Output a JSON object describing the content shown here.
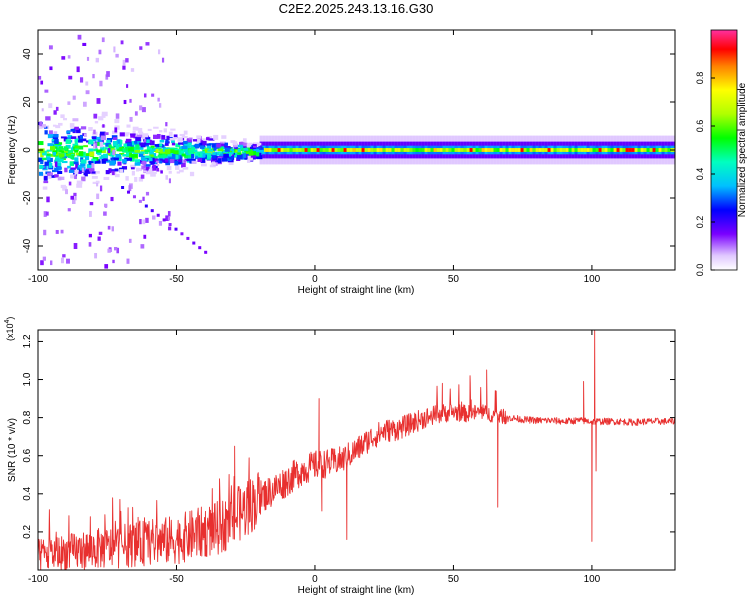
{
  "title": "C2E2.2025.243.13.16.G30",
  "colors": {
    "snr_line": "#e8302f",
    "axis": "#000000"
  },
  "chart_data": [
    {
      "type": "heatmap",
      "xlabel": "Height of straight line (km)",
      "ylabel": "Frequency (Hz)",
      "xlim": [
        -100,
        130
      ],
      "ylim": [
        -50,
        50
      ],
      "xticks": [
        -100,
        -50,
        0,
        50,
        100
      ],
      "yticks": [
        -40,
        -20,
        0,
        20,
        40
      ],
      "colorbar": {
        "label": "Normalized spectral amplitude",
        "range": [
          0,
          1
        ],
        "ticks": [
          0.0,
          0.2,
          0.4,
          0.6,
          0.8
        ],
        "tick_labels": [
          "0.0",
          "0.2",
          "0.4",
          "0.6",
          "0.8"
        ],
        "colormap": "rainbow"
      },
      "features": {
        "dominant_frequency_hz": 0,
        "stable_band_start_km": -20,
        "stable_band_end_km": 130,
        "scattered_region_km": [
          -100,
          -20
        ],
        "diagonal_streak": {
          "x": [
            -70,
            -40
          ],
          "y": [
            -15,
            -42
          ]
        }
      }
    },
    {
      "type": "line",
      "xlabel": "Height of straight line (km)",
      "ylabel": "SNR (10 * v/v)",
      "y_scale_label": "(x10",
      "y_scale_exponent": "4",
      "y_scale_close": ")",
      "xlim": [
        -100,
        130
      ],
      "ylim": [
        0,
        12600
      ],
      "xticks": [
        -100,
        -50,
        0,
        50,
        100
      ],
      "yticks": [
        2000,
        4000,
        6000,
        8000,
        10000,
        12000
      ],
      "ytick_labels": [
        "0.2",
        "0.4",
        "0.6",
        "0.8",
        "1.0",
        "1.2"
      ],
      "series": [
        {
          "x": [
            -100,
            -95,
            -90,
            -85,
            -80,
            -75,
            -70,
            -65,
            -60,
            -55,
            -50,
            -45,
            -40,
            -35,
            -30,
            -25,
            -20,
            -15,
            -10,
            -5,
            0,
            5,
            10,
            15,
            20,
            25,
            30,
            35,
            40,
            45,
            50,
            55,
            60,
            65,
            70,
            75,
            80,
            85,
            90,
            95,
            100,
            105,
            110,
            115,
            120,
            125,
            130
          ],
          "y": [
            700,
            850,
            900,
            1000,
            1100,
            1150,
            1250,
            1350,
            1450,
            1500,
            1600,
            1800,
            2000,
            2200,
            2600,
            3200,
            3800,
            4200,
            4700,
            5200,
            5500,
            5600,
            5800,
            6300,
            6900,
            7300,
            7400,
            7700,
            8000,
            8200,
            8300,
            8200,
            8300,
            8100,
            8000,
            7900,
            7850,
            7850,
            7800,
            7850,
            7800,
            7800,
            7800,
            7750,
            7800,
            7800,
            7800
          ],
          "spikes": [
            {
              "x": -29,
              "y": 6500
            },
            {
              "x": 1.5,
              "y": 9000
            },
            {
              "x": 2.5,
              "y": 3100
            },
            {
              "x": 11.5,
              "y": 1600
            },
            {
              "x": 46,
              "y": 9800
            },
            {
              "x": 56,
              "y": 10200
            },
            {
              "x": 62,
              "y": 10500
            },
            {
              "x": 66,
              "y": 3300
            },
            {
              "x": 97,
              "y": 9900
            },
            {
              "x": 100,
              "y": 1500
            },
            {
              "x": 101,
              "y": 12600
            },
            {
              "x": 101.5,
              "y": 5200
            }
          ]
        }
      ]
    }
  ]
}
